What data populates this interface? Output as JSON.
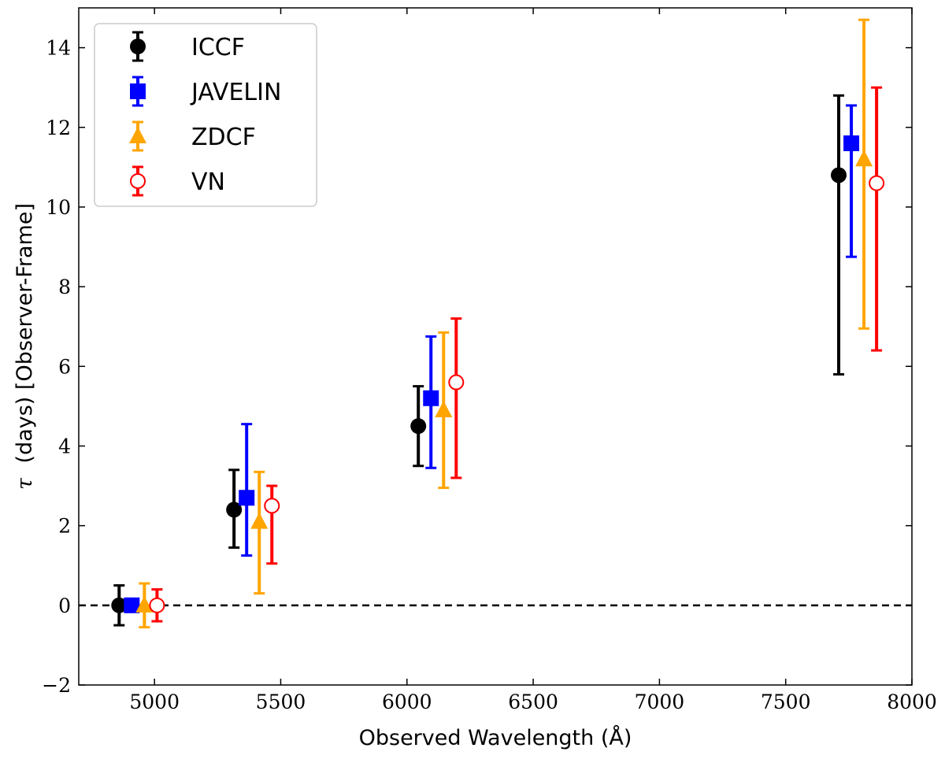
{
  "chart_data": {
    "type": "scatter",
    "xlabel": "Observed Wavelength (Å)",
    "ylabel_prefix": "τ",
    "ylabel": "(days) [Observer-Frame]",
    "xlim": [
      4700,
      8000
    ],
    "ylim": [
      -2,
      15
    ],
    "xticks": [
      5000,
      5500,
      6000,
      6500,
      7000,
      7500,
      8000
    ],
    "yticks": [
      -2,
      0,
      2,
      4,
      6,
      8,
      10,
      12,
      14
    ],
    "ytick_labels": [
      "−2",
      "0",
      "2",
      "4",
      "6",
      "8",
      "10",
      "12",
      "14"
    ],
    "reference_line": {
      "y": 0,
      "style": "dashed",
      "color": "#000000"
    },
    "legend_position": "top-left",
    "series": [
      {
        "name": "ICCF",
        "marker": "circle-filled",
        "color": "#000000",
        "points": [
          {
            "x": 4860,
            "y": 0.0,
            "err_low": 0.5,
            "err_high": 0.5
          },
          {
            "x": 5315,
            "y": 2.4,
            "err_low": 0.95,
            "err_high": 1.0
          },
          {
            "x": 6045,
            "y": 4.5,
            "err_low": 1.0,
            "err_high": 1.0
          },
          {
            "x": 7710,
            "y": 10.8,
            "err_low": 5.0,
            "err_high": 2.0
          }
        ]
      },
      {
        "name": "JAVELIN",
        "marker": "square-filled",
        "color": "#0000ff",
        "points": [
          {
            "x": 4910,
            "y": 0.0,
            "err_low": 0.0,
            "err_high": 0.0
          },
          {
            "x": 5365,
            "y": 2.7,
            "err_low": 1.45,
            "err_high": 1.85
          },
          {
            "x": 6095,
            "y": 5.2,
            "err_low": 1.75,
            "err_high": 1.55
          },
          {
            "x": 7760,
            "y": 11.6,
            "err_low": 2.85,
            "err_high": 0.95
          }
        ]
      },
      {
        "name": "ZDCF",
        "marker": "triangle-filled",
        "color": "#ffa500",
        "points": [
          {
            "x": 4960,
            "y": 0.0,
            "err_low": 0.55,
            "err_high": 0.55
          },
          {
            "x": 5415,
            "y": 2.1,
            "err_low": 1.8,
            "err_high": 1.25
          },
          {
            "x": 6145,
            "y": 4.9,
            "err_low": 1.95,
            "err_high": 1.95
          },
          {
            "x": 7810,
            "y": 11.2,
            "err_low": 4.25,
            "err_high": 3.5
          }
        ]
      },
      {
        "name": "VN",
        "marker": "circle-open",
        "color": "#ff0000",
        "points": [
          {
            "x": 5010,
            "y": 0.0,
            "err_low": 0.4,
            "err_high": 0.4
          },
          {
            "x": 5465,
            "y": 2.5,
            "err_low": 1.45,
            "err_high": 0.5
          },
          {
            "x": 6195,
            "y": 5.6,
            "err_low": 2.4,
            "err_high": 1.6
          },
          {
            "x": 7860,
            "y": 10.6,
            "err_low": 4.2,
            "err_high": 2.4
          }
        ]
      }
    ]
  }
}
